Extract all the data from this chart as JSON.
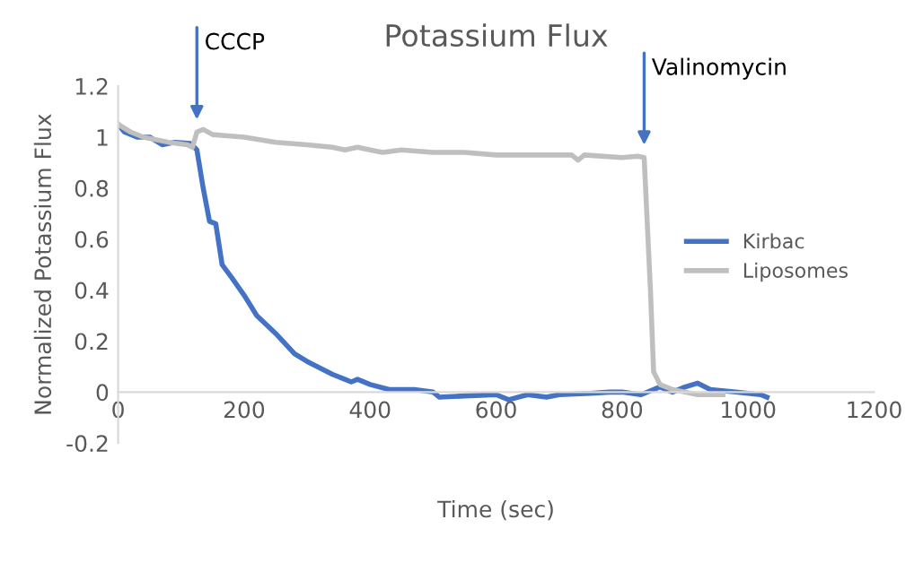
{
  "chart_data": {
    "type": "line",
    "title": "Potassium Flux",
    "xlabel": "Time (sec)",
    "ylabel": "Normalized Potassium Flux",
    "xlim": [
      0,
      1200
    ],
    "xticks": [
      0,
      200,
      400,
      600,
      800,
      1000,
      1200
    ],
    "ylim": [
      -0.2,
      1.2
    ],
    "yticks": [
      -0.2,
      0,
      0.2,
      0.4,
      0.6,
      0.8,
      1,
      1.2
    ],
    "grid": false,
    "legend": "right",
    "marker": "none",
    "line_style": "solid",
    "annotations": [
      {
        "text": "CCCP",
        "x": 125,
        "y": 1.02
      },
      {
        "text": "Valinomycin",
        "x": 835,
        "y": 0.92
      }
    ],
    "series": [
      {
        "name": "Kirbac",
        "color": "#4472c4",
        "x": [
          0,
          10,
          30,
          50,
          70,
          90,
          115,
          125,
          135,
          145,
          155,
          165,
          180,
          200,
          220,
          250,
          280,
          300,
          340,
          360,
          370,
          380,
          400,
          430,
          470,
          500,
          510,
          550,
          600,
          620,
          650,
          680,
          700,
          750,
          780,
          800,
          830,
          860,
          880,
          900,
          920,
          940,
          980,
          1020,
          1030
        ],
        "values": [
          1.05,
          1.02,
          1.0,
          1.0,
          0.97,
          0.98,
          0.975,
          0.95,
          0.8,
          0.67,
          0.66,
          0.5,
          0.45,
          0.38,
          0.3,
          0.23,
          0.15,
          0.12,
          0.07,
          0.05,
          0.04,
          0.05,
          0.03,
          0.01,
          0.01,
          0.0,
          -0.02,
          -0.015,
          -0.01,
          -0.03,
          -0.01,
          -0.02,
          -0.01,
          -0.005,
          0.0,
          0.0,
          -0.01,
          0.02,
          0.0,
          0.02,
          0.035,
          0.01,
          0.0,
          -0.01,
          -0.02
        ]
      },
      {
        "name": "Liposomes",
        "color": "#bfbfbf",
        "x": [
          0,
          20,
          40,
          80,
          110,
          118,
          125,
          135,
          150,
          200,
          250,
          300,
          340,
          360,
          380,
          400,
          420,
          450,
          500,
          550,
          600,
          650,
          720,
          730,
          740,
          800,
          825,
          835,
          845,
          850,
          860,
          880,
          900,
          920,
          960
        ],
        "values": [
          1.05,
          1.02,
          1.0,
          0.98,
          0.97,
          0.96,
          1.02,
          1.03,
          1.01,
          1.0,
          0.98,
          0.97,
          0.96,
          0.95,
          0.96,
          0.95,
          0.94,
          0.95,
          0.94,
          0.94,
          0.93,
          0.93,
          0.93,
          0.91,
          0.93,
          0.92,
          0.925,
          0.92,
          0.4,
          0.08,
          0.03,
          0.01,
          0.0,
          -0.01,
          -0.01
        ]
      }
    ]
  }
}
